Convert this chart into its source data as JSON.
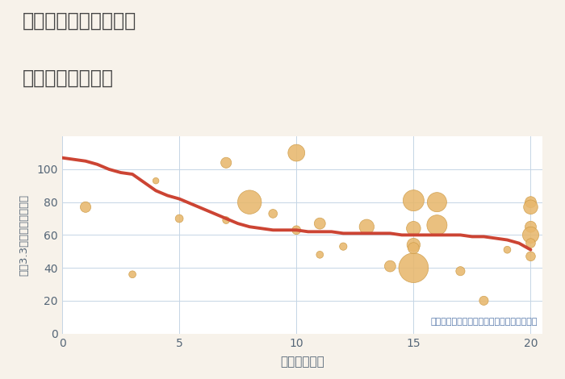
{
  "title_line1": "大阪府高槻市土橋町の",
  "title_line2": "駅距離別土地価格",
  "xlabel": "駅距離（分）",
  "ylabel": "坪（3.3㎡）単価（万円）",
  "annotation": "円の大きさは、取引のあった物件面積を示す",
  "xlim": [
    0,
    20.5
  ],
  "ylim": [
    0,
    120
  ],
  "xticks": [
    0,
    5,
    10,
    15,
    20
  ],
  "yticks": [
    0,
    20,
    40,
    60,
    80,
    100
  ],
  "bg_color": "#f7f2ea",
  "plot_bg_color": "#ffffff",
  "grid_color": "#c5d5e5",
  "bubble_color": "#e8b86d",
  "bubble_edge_color": "#cc9944",
  "line_color": "#cc4433",
  "title_color": "#444444",
  "label_color": "#556677",
  "tick_color": "#556677",
  "annotation_color": "#5577aa",
  "scatter_x": [
    1,
    3,
    4,
    5,
    7,
    7,
    8,
    9,
    10,
    10,
    11,
    11,
    12,
    13,
    14,
    15,
    15,
    15,
    15,
    15,
    16,
    16,
    17,
    18,
    19,
    20,
    20,
    20,
    20,
    20,
    20
  ],
  "scatter_y": [
    77,
    36,
    93,
    70,
    69,
    104,
    80,
    73,
    110,
    63,
    67,
    48,
    53,
    65,
    41,
    64,
    81,
    40,
    54,
    52,
    80,
    66,
    38,
    20,
    51,
    80,
    77,
    65,
    60,
    55,
    47
  ],
  "scatter_size": [
    180,
    80,
    60,
    100,
    80,
    180,
    900,
    120,
    450,
    120,
    200,
    80,
    90,
    350,
    200,
    320,
    700,
    1400,
    280,
    200,
    600,
    650,
    130,
    130,
    80,
    200,
    320,
    200,
    420,
    140,
    140
  ],
  "line_x": [
    0,
    0.5,
    1,
    1.5,
    2,
    2.5,
    3,
    3.5,
    4,
    4.5,
    5,
    5.5,
    6,
    6.5,
    7,
    7.5,
    8,
    8.5,
    9,
    9.5,
    10,
    10.5,
    11,
    11.5,
    12,
    12.5,
    13,
    13.5,
    14,
    14.5,
    15,
    15.5,
    16,
    16.5,
    17,
    17.5,
    18,
    18.5,
    19,
    19.5,
    20
  ],
  "line_y": [
    107,
    106,
    105,
    103,
    100,
    98,
    97,
    92,
    87,
    84,
    82,
    79,
    76,
    73,
    70,
    67,
    65,
    64,
    63,
    63,
    63,
    62,
    62,
    62,
    61,
    61,
    61,
    61,
    61,
    60,
    60,
    60,
    60,
    60,
    60,
    59,
    59,
    58,
    57,
    55,
    51
  ]
}
